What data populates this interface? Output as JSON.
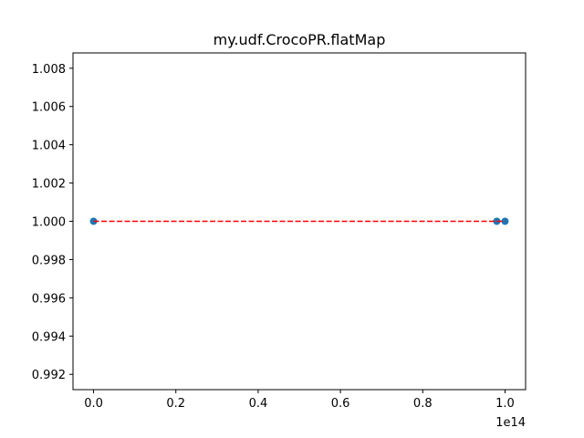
{
  "chart_data": {
    "type": "scatter",
    "title": "my.udf.CrocoPR.flatMap",
    "xlabel": "",
    "ylabel": "",
    "x_offset_label": "1e14",
    "xlim": [
      -0.05,
      1.05
    ],
    "ylim": [
      0.9912,
      1.0088
    ],
    "xticks": [
      0.0,
      0.2,
      0.4,
      0.6,
      0.8,
      1.0
    ],
    "xtick_labels": [
      "0.0",
      "0.2",
      "0.4",
      "0.6",
      "0.8",
      "1.0"
    ],
    "yticks": [
      0.992,
      0.994,
      0.996,
      0.998,
      1.0,
      1.002,
      1.004,
      1.006,
      1.008
    ],
    "ytick_labels": [
      "0.992",
      "0.994",
      "0.996",
      "0.998",
      "1.000",
      "1.002",
      "1.004",
      "1.006",
      "1.008"
    ],
    "grid": false,
    "series": [
      {
        "kind": "scatter",
        "x": [
          0.0,
          0.98,
          1.0
        ],
        "y": [
          1.0,
          1.0,
          1.0
        ],
        "color": "#1f77b4"
      },
      {
        "kind": "line",
        "style": "dashed",
        "x": [
          0.0,
          1.0
        ],
        "y": [
          1.0,
          1.0
        ],
        "color": "#ff0000"
      }
    ]
  }
}
